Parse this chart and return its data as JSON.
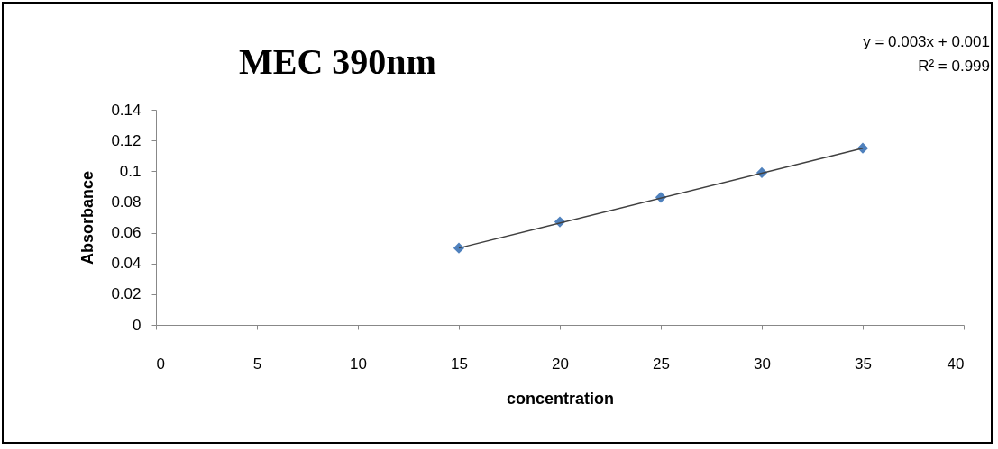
{
  "chart_data": {
    "type": "scatter",
    "title": "MEC 390nm",
    "xlabel": "concentration",
    "ylabel": "Absorbance",
    "annotations": [
      "y = 0.003x + 0.001",
      "R² = 0.999"
    ],
    "series": [
      {
        "marker": "diamond",
        "color": "#4f81bd",
        "x": [
          15,
          20,
          25,
          30,
          35
        ],
        "values": [
          0.05,
          0.067,
          0.083,
          0.099,
          0.115
        ]
      },
      {
        "type": "line",
        "marker": "none",
        "color": "#404040",
        "x": [
          15,
          35
        ],
        "values": [
          0.05,
          0.115
        ]
      }
    ],
    "grid": false,
    "legend": false,
    "xlim": [
      0,
      40
    ],
    "xticks": [
      0,
      5,
      10,
      15,
      20,
      25,
      30,
      35,
      40
    ],
    "ylim": [
      0,
      0.14
    ],
    "yticks": [
      0,
      0.02,
      0.04,
      0.06,
      0.08,
      0.1,
      0.12,
      0.14
    ]
  }
}
